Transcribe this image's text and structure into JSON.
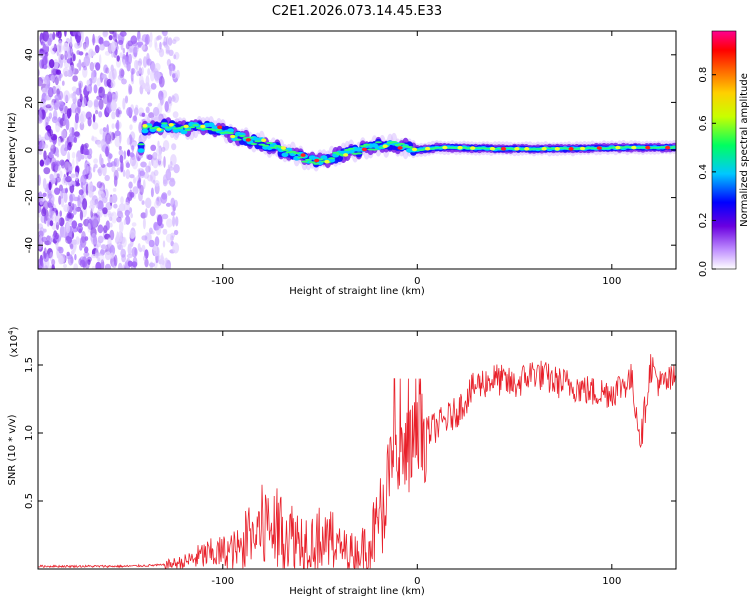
{
  "figure": {
    "title": "C2E1.2026.073.14.45.E33"
  },
  "chart_data": [
    {
      "type": "heatmap",
      "name": "spectrogram",
      "xlabel": "Height of straight line (km)",
      "ylabel": "Frequency (Hz)",
      "xlim": [
        -195,
        133
      ],
      "ylim": [
        -50,
        50
      ],
      "x_ticks": [
        -100,
        0,
        100
      ],
      "y_ticks": [
        -40,
        -20,
        0,
        20,
        40
      ],
      "colorbar": {
        "label": "Normalized spectral amplitude",
        "range": [
          0,
          0.98
        ],
        "ticks": [
          0.0,
          0.2,
          0.4,
          0.6,
          0.8
        ],
        "colors": [
          "#ffffff",
          "#b070ff",
          "#6a00e0",
          "#0000ff",
          "#00c8ff",
          "#00ff60",
          "#ffff00",
          "#ff8000",
          "#ff0000",
          "#ff00a0"
        ]
      },
      "ridge": {
        "x": [
          -140,
          -130,
          -120,
          -110,
          -100,
          -90,
          -80,
          -70,
          -60,
          -50,
          -40,
          -30,
          -20,
          -10,
          0,
          10,
          20,
          40,
          60,
          80,
          100,
          120,
          133
        ],
        "y": [
          9,
          10,
          9,
          10,
          8,
          5,
          3,
          0,
          -3,
          -5,
          -2,
          0,
          2,
          2,
          0,
          1,
          1,
          0.5,
          0.5,
          0.5,
          1,
          1,
          1
        ]
      }
    },
    {
      "type": "line",
      "name": "snr",
      "xlabel": "Height of straight line (km)",
      "ylabel": "SNR (10 * v/v)",
      "y_scale_label": "(x10",
      "y_scale_exp": "4",
      "xlim": [
        -195,
        133
      ],
      "ylim": [
        0,
        1.75
      ],
      "x_ticks": [
        -100,
        0,
        100
      ],
      "y_ticks": [
        0.5,
        1.0,
        1.5
      ],
      "y_tick_labels": [
        "0.5",
        "1.0",
        "1.5"
      ],
      "color": "#e8202a",
      "series": [
        {
          "name": "SNR",
          "x": [
            -195,
            -150,
            -130,
            -120,
            -110,
            -100,
            -90,
            -80,
            -70,
            -60,
            -50,
            -40,
            -30,
            -20,
            -15,
            -10,
            -5,
            0,
            10,
            20,
            30,
            40,
            50,
            60,
            70,
            80,
            90,
            100,
            110,
            115,
            120,
            125,
            133
          ],
          "y": [
            0.02,
            0.02,
            0.03,
            0.05,
            0.1,
            0.12,
            0.15,
            0.3,
            0.28,
            0.22,
            0.2,
            0.15,
            0.12,
            0.3,
            0.65,
            0.75,
            0.85,
            0.95,
            1.05,
            1.15,
            1.35,
            1.4,
            1.35,
            1.45,
            1.38,
            1.35,
            1.3,
            1.3,
            1.4,
            0.95,
            1.5,
            1.35,
            1.4
          ]
        }
      ]
    }
  ]
}
